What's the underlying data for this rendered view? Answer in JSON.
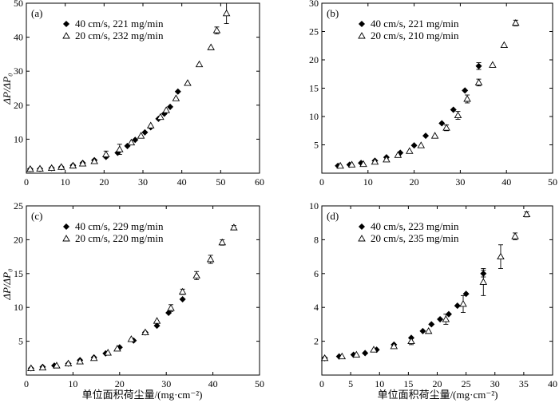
{
  "figure": {
    "y_axis_label": "ΔP/ΔP₀",
    "x_axis_label": "单位面积荷尘量/(mg·cm⁻²)"
  },
  "chart_data": [
    {
      "type": "scatter",
      "panel_label": "(a)",
      "xlim": [
        0,
        60
      ],
      "ylim": [
        0,
        50
      ],
      "xticks": [
        "0",
        "10",
        "20",
        "30",
        "40",
        "50",
        "60"
      ],
      "yticks": [
        "10",
        "20",
        "30",
        "40",
        "50"
      ],
      "legend_position": "top-left",
      "series": [
        {
          "name": "40 cm/s, 221 mg/min",
          "marker": "diamond-filled",
          "x": [
            1,
            3.5,
            6.5,
            9,
            12,
            14.5,
            17.5,
            20.5,
            23.5,
            26,
            28,
            30.5,
            32,
            34,
            35.5,
            37,
            39
          ],
          "y": [
            1.2,
            1.3,
            1.5,
            1.8,
            2.3,
            3.0,
            3.8,
            4.8,
            6.0,
            8.0,
            9.8,
            12.0,
            13.5,
            16,
            17.5,
            19.5,
            24
          ]
        },
        {
          "name": "20 cm/s, 232 mg/min",
          "marker": "triangle-open",
          "x": [
            1,
            3.5,
            6.5,
            9,
            12,
            14.5,
            17.5,
            20.5,
            24,
            27,
            29.5,
            32,
            34.5,
            36,
            38.5,
            41.5,
            44.5,
            47.5,
            49,
            51.5
          ],
          "y": [
            1.2,
            1.3,
            1.5,
            1.8,
            2.2,
            2.8,
            3.5,
            5.5,
            7.0,
            9.0,
            11.0,
            14.0,
            16.5,
            18.5,
            22.0,
            26.5,
            32.0,
            37.0,
            42.0,
            47.0
          ],
          "yerr": [
            0,
            0,
            0,
            0,
            0,
            0,
            0.5,
            1.0,
            1.5,
            0,
            0,
            0,
            0,
            0,
            0,
            0,
            0,
            0,
            1.0,
            3.0
          ]
        }
      ]
    },
    {
      "type": "scatter",
      "panel_label": "(b)",
      "xlim": [
        0,
        50
      ],
      "ylim": [
        0,
        30
      ],
      "xticks": [
        "0",
        "10",
        "20",
        "30",
        "40",
        "50"
      ],
      "yticks": [
        "5",
        "10",
        "15",
        "20",
        "25",
        "30"
      ],
      "legend_position": "top-left",
      "series": [
        {
          "name": "40 cm/s, 221 mg/min",
          "marker": "diamond-filled",
          "x": [
            3.5,
            6,
            8.5,
            11.5,
            14,
            17,
            20,
            22.5,
            26,
            28.5,
            31,
            34
          ],
          "y": [
            1.3,
            1.5,
            1.8,
            2.2,
            2.8,
            3.6,
            4.9,
            6.6,
            8.8,
            11.2,
            14.6,
            18.9
          ],
          "yerr": [
            0,
            0,
            0,
            0,
            0,
            0,
            0,
            0,
            0,
            0,
            0,
            0.6
          ]
        },
        {
          "name": "20 cm/s, 210 mg/min",
          "marker": "triangle-open",
          "x": [
            4,
            6.5,
            9,
            11.5,
            14,
            16.5,
            19,
            21.5,
            24.5,
            27,
            29.5,
            31.5,
            34,
            37,
            39.5,
            42
          ],
          "y": [
            1.3,
            1.5,
            1.6,
            2.0,
            2.4,
            3.2,
            3.9,
            4.9,
            6.6,
            8.0,
            10.2,
            13.1,
            16.0,
            19.1,
            22.6,
            26.5
          ],
          "yerr": [
            0,
            0,
            0,
            0,
            0,
            0,
            0,
            0,
            0,
            0.5,
            0.7,
            0.7,
            0.6,
            0,
            0,
            0.5
          ]
        }
      ]
    },
    {
      "type": "scatter",
      "panel_label": "(c)",
      "xlim": [
        0,
        50
      ],
      "ylim": [
        0,
        25
      ],
      "xticks": [
        "0",
        "10",
        "20",
        "30",
        "40",
        "50"
      ],
      "yticks": [
        "5",
        "10",
        "15",
        "20",
        "25"
      ],
      "legend_position": "top-left",
      "series": [
        {
          "name": "40 cm/s, 229 mg/min",
          "marker": "diamond-filled",
          "x": [
            1,
            3.5,
            6,
            9,
            11.5,
            14.5,
            17,
            20,
            23,
            25.5,
            28,
            30.5,
            33.5
          ],
          "y": [
            1.0,
            1.2,
            1.4,
            1.7,
            2.2,
            2.6,
            3.2,
            4.1,
            5.1,
            6.3,
            7.3,
            9.2,
            11.2
          ]
        },
        {
          "name": "20 cm/s, 220 mg/min",
          "marker": "triangle-open",
          "x": [
            1,
            3.5,
            6.5,
            9,
            11.5,
            14.5,
            17.5,
            19.5,
            22.5,
            25.5,
            28,
            31,
            33.5,
            36.5,
            39.5,
            42,
            44.5
          ],
          "y": [
            1.0,
            1.1,
            1.4,
            1.7,
            2.0,
            2.5,
            3.3,
            3.9,
            5.3,
            6.3,
            8.0,
            9.9,
            12.3,
            14.7,
            17.1,
            19.6,
            21.8
          ],
          "yerr": [
            0,
            0,
            0,
            0,
            0,
            0,
            0,
            0,
            0,
            0,
            0,
            0.5,
            0.4,
            0.6,
            0.6,
            0.4,
            0.3
          ]
        }
      ]
    },
    {
      "type": "scatter",
      "panel_label": "(d)",
      "xlim": [
        0,
        40
      ],
      "ylim": [
        0,
        10
      ],
      "xticks": [
        "0",
        "5",
        "10",
        "15",
        "20",
        "25",
        "30",
        "35",
        "40"
      ],
      "yticks": [
        "2",
        "4",
        "6",
        "8",
        "10"
      ],
      "legend_position": "top-left",
      "series": [
        {
          "name": "40 cm/s, 223 mg/min",
          "marker": "diamond-filled",
          "x": [
            0.5,
            3,
            5.5,
            7.5,
            9.5,
            12.5,
            15.5,
            17.5,
            19,
            20.5,
            22,
            23.5,
            25,
            28
          ],
          "y": [
            1.0,
            1.1,
            1.2,
            1.3,
            1.5,
            1.8,
            2.2,
            2.6,
            3.0,
            3.3,
            3.6,
            4.1,
            4.8,
            6.0
          ],
          "yerr": [
            0,
            0,
            0,
            0,
            0,
            0,
            0,
            0,
            0,
            0,
            0,
            0,
            0,
            0.2
          ]
        },
        {
          "name": "20 cm/s, 235 mg/min",
          "marker": "triangle-open",
          "x": [
            0.5,
            3.5,
            6,
            9,
            12.5,
            15.5,
            18.5,
            21.5,
            24.5,
            28,
            31,
            33.5,
            35.5
          ],
          "y": [
            1.0,
            1.1,
            1.2,
            1.5,
            1.7,
            2.0,
            2.6,
            3.3,
            4.2,
            5.5,
            7.0,
            8.2,
            9.5
          ],
          "yerr": [
            0,
            0,
            0,
            0,
            0,
            0.2,
            0,
            0.3,
            0.5,
            0.8,
            0.7,
            0.2,
            0.15
          ]
        }
      ]
    }
  ]
}
